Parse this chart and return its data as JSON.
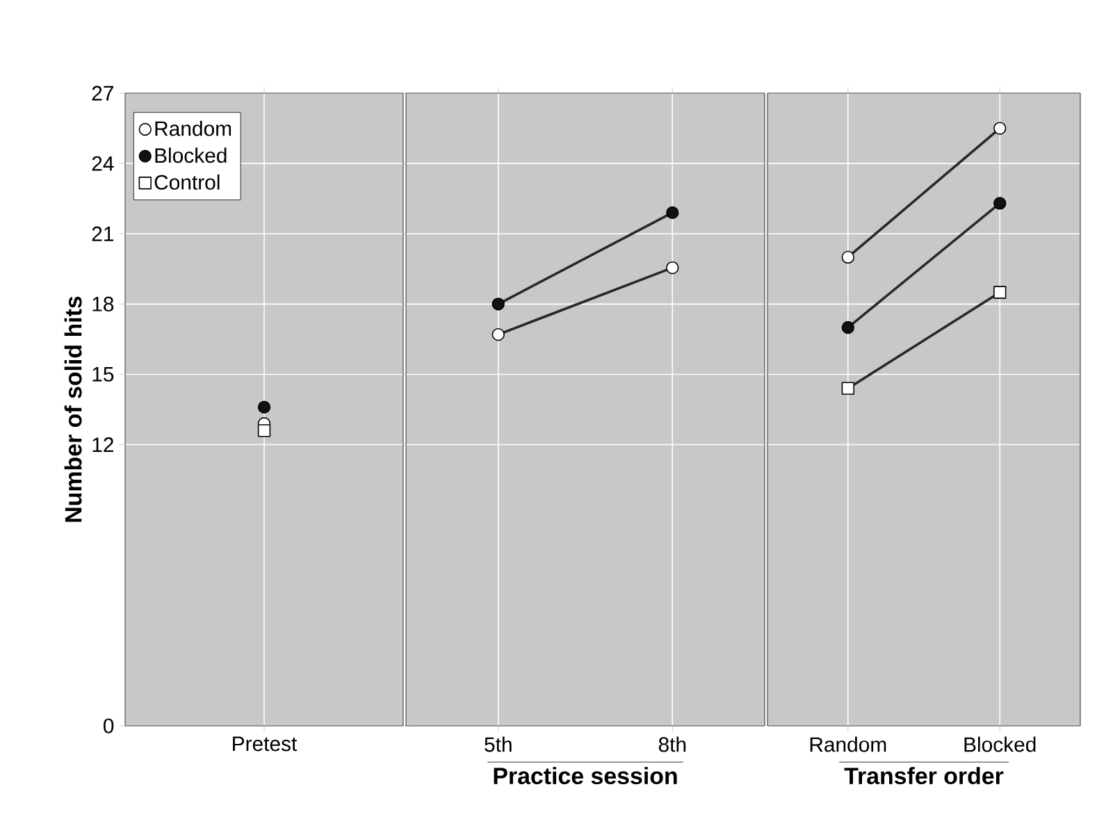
{
  "chart_data": [
    {
      "type": "line",
      "ylabel": "Number of solid hits",
      "categories": [
        "Pretest"
      ],
      "ylim": [
        0,
        27
      ],
      "yticks": [
        0,
        12,
        15,
        18,
        21,
        24,
        27
      ],
      "grid": true,
      "legend": "top left",
      "series": [
        {
          "name": "Random",
          "color": "#ffffff",
          "marker": "circle",
          "values": [
            12.9
          ]
        },
        {
          "name": "Blocked",
          "color": "#111111",
          "marker": "circle",
          "values": [
            13.6
          ]
        },
        {
          "name": "Control",
          "color": "#ffffff",
          "marker": "square",
          "values": [
            12.6
          ]
        }
      ]
    },
    {
      "type": "line",
      "xlabel": "Practice session",
      "categories": [
        "5th",
        "8th"
      ],
      "ylim": [
        0,
        27
      ],
      "yticks": [
        0,
        12,
        15,
        18,
        21,
        24,
        27
      ],
      "grid": true,
      "tick_labels": "x",
      "series": [
        {
          "color": "#ffffff",
          "marker": "circle",
          "values": [
            16.7,
            19.55
          ]
        },
        {
          "color": "#111111",
          "marker": "circle",
          "values": [
            18.0,
            21.9
          ]
        }
      ]
    },
    {
      "type": "line",
      "xlabel": "Transfer order",
      "categories": [
        "Random",
        "Blocked"
      ],
      "ylim": [
        0,
        27
      ],
      "yticks": [
        0,
        12,
        15,
        18,
        21,
        24,
        27
      ],
      "grid": true,
      "tick_labels": "x",
      "series": [
        {
          "color": "#ffffff",
          "marker": "circle",
          "values": [
            20.0,
            25.5
          ]
        },
        {
          "color": "#111111",
          "marker": "circle",
          "values": [
            17.0,
            22.3
          ]
        },
        {
          "color": "#ffffff",
          "marker": "square",
          "values": [
            14.4,
            18.5
          ]
        }
      ]
    }
  ]
}
